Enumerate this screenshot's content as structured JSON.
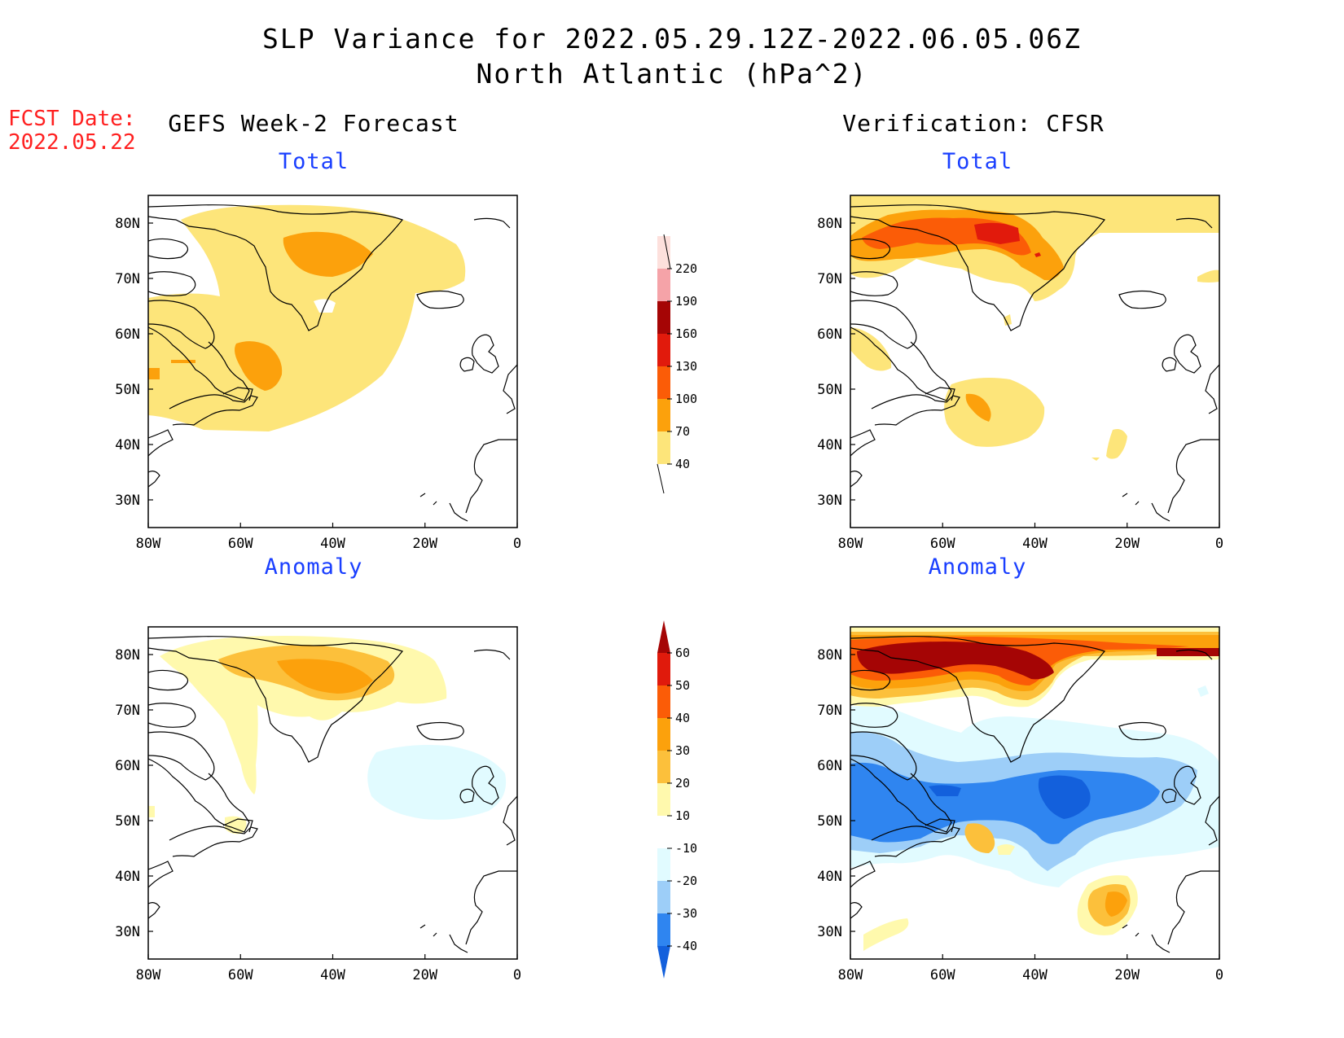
{
  "title": {
    "line1": "SLP Variance for 2022.05.29.12Z-2022.06.05.06Z",
    "line2": "North Atlantic (hPa^2)"
  },
  "fcst": {
    "label": "FCST Date:",
    "date": "2022.05.22"
  },
  "columns": {
    "left": "GEFS Week-2 Forecast",
    "right": "Verification: CFSR"
  },
  "panels": {
    "top": "Total",
    "bottom": "Anomaly"
  },
  "axes": {
    "lat_labels": [
      "80N",
      "70N",
      "60N",
      "50N",
      "40N",
      "30N"
    ],
    "lat_values": [
      80,
      70,
      60,
      50,
      40,
      30
    ],
    "lon_labels": [
      "80W",
      "60W",
      "40W",
      "20W",
      "0"
    ],
    "lon_values": [
      -80,
      -60,
      -40,
      -20,
      0
    ]
  },
  "colorbars": {
    "total": {
      "labels": [
        "40",
        "70",
        "100",
        "130",
        "160",
        "190",
        "220"
      ],
      "colors": [
        "#fde57a",
        "#fca10c",
        "#fb5c07",
        "#e11a0c",
        "#a50505",
        "#f5a3a8",
        "#fde0dc"
      ]
    },
    "anomaly": {
      "labels": [
        "-40",
        "-30",
        "-20",
        "-10",
        "10",
        "20",
        "30",
        "40",
        "50",
        "60"
      ],
      "colors": [
        "#1360dc",
        "#2f85f0",
        "#9dcef8",
        "#e1fbff",
        "#ffffff",
        "#fff9ad",
        "#fcc03b",
        "#fca10c",
        "#fb5c07",
        "#e01a0c",
        "#a50505"
      ]
    }
  }
}
